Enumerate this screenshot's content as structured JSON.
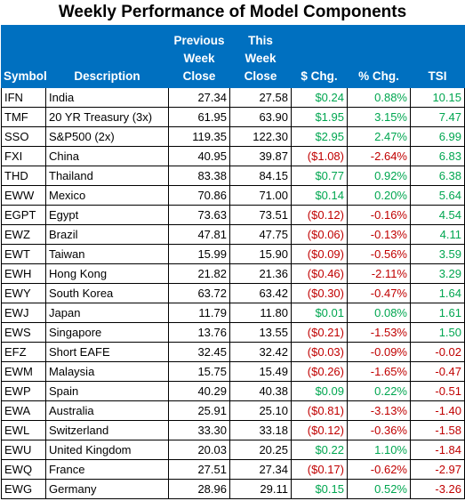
{
  "title": "Weekly Performance of Model Components",
  "headers": {
    "symbol": "Symbol",
    "description": "Description",
    "prev_close": [
      "Previous",
      "Week",
      "Close"
    ],
    "this_close": [
      "This",
      "Week",
      "Close"
    ],
    "chg": "$ Chg.",
    "pct": "% Chg.",
    "tsi": "TSI"
  },
  "colors": {
    "header_bg": "#0070c0",
    "positive": "#00a650",
    "negative": "#c00000"
  },
  "rows": [
    {
      "symbol": "IFN",
      "description": "India",
      "prev": "27.34",
      "cur": "27.58",
      "chg": "$0.24",
      "pct": "0.88%",
      "tsi": "10.15",
      "sign": "pos"
    },
    {
      "symbol": "TMF",
      "description": "20 YR Treasury (3x)",
      "prev": "61.95",
      "cur": "63.90",
      "chg": "$1.95",
      "pct": "3.15%",
      "tsi": "7.47",
      "sign": "pos"
    },
    {
      "symbol": "SSO",
      "description": "S&P500 (2x)",
      "prev": "119.35",
      "cur": "122.30",
      "chg": "$2.95",
      "pct": "2.47%",
      "tsi": "6.99",
      "sign": "pos"
    },
    {
      "symbol": "FXI",
      "description": "China",
      "prev": "40.95",
      "cur": "39.87",
      "chg": "($1.08)",
      "pct": "-2.64%",
      "tsi": "6.83",
      "sign": "neg"
    },
    {
      "symbol": "THD",
      "description": "Thailand",
      "prev": "83.38",
      "cur": "84.15",
      "chg": "$0.77",
      "pct": "0.92%",
      "tsi": "6.38",
      "sign": "pos"
    },
    {
      "symbol": "EWW",
      "description": "Mexico",
      "prev": "70.86",
      "cur": "71.00",
      "chg": "$0.14",
      "pct": "0.20%",
      "tsi": "5.64",
      "sign": "pos"
    },
    {
      "symbol": "EGPT",
      "description": "Egypt",
      "prev": "73.63",
      "cur": "73.51",
      "chg": "($0.12)",
      "pct": "-0.16%",
      "tsi": "4.54",
      "sign": "neg"
    },
    {
      "symbol": "EWZ",
      "description": "Brazil",
      "prev": "47.81",
      "cur": "47.75",
      "chg": "($0.06)",
      "pct": "-0.13%",
      "tsi": "4.11",
      "sign": "neg"
    },
    {
      "symbol": "EWT",
      "description": "Taiwan",
      "prev": "15.99",
      "cur": "15.90",
      "chg": "($0.09)",
      "pct": "-0.56%",
      "tsi": "3.59",
      "sign": "neg"
    },
    {
      "symbol": "EWH",
      "description": "Hong Kong",
      "prev": "21.82",
      "cur": "21.36",
      "chg": "($0.46)",
      "pct": "-2.11%",
      "tsi": "3.29",
      "sign": "neg"
    },
    {
      "symbol": "EWY",
      "description": "South Korea",
      "prev": "63.72",
      "cur": "63.42",
      "chg": "($0.30)",
      "pct": "-0.47%",
      "tsi": "1.64",
      "sign": "neg"
    },
    {
      "symbol": "EWJ",
      "description": "Japan",
      "prev": "11.79",
      "cur": "11.80",
      "chg": "$0.01",
      "pct": "0.08%",
      "tsi": "1.61",
      "sign": "pos"
    },
    {
      "symbol": "EWS",
      "description": "Singapore",
      "prev": "13.76",
      "cur": "13.55",
      "chg": "($0.21)",
      "pct": "-1.53%",
      "tsi": "1.50",
      "sign": "neg"
    },
    {
      "symbol": "EFZ",
      "description": "Short EAFE",
      "prev": "32.45",
      "cur": "32.42",
      "chg": "($0.03)",
      "pct": "-0.09%",
      "tsi": "-0.02",
      "sign": "neg"
    },
    {
      "symbol": "EWM",
      "description": "Malaysia",
      "prev": "15.75",
      "cur": "15.49",
      "chg": "($0.26)",
      "pct": "-1.65%",
      "tsi": "-0.47",
      "sign": "neg"
    },
    {
      "symbol": "EWP",
      "description": "Spain",
      "prev": "40.29",
      "cur": "40.38",
      "chg": "$0.09",
      "pct": "0.22%",
      "tsi": "-0.51",
      "sign": "pos"
    },
    {
      "symbol": "EWA",
      "description": "Australia",
      "prev": "25.91",
      "cur": "25.10",
      "chg": "($0.81)",
      "pct": "-3.13%",
      "tsi": "-1.40",
      "sign": "neg"
    },
    {
      "symbol": "EWL",
      "description": "Switzerland",
      "prev": "33.30",
      "cur": "33.18",
      "chg": "($0.12)",
      "pct": "-0.36%",
      "tsi": "-1.58",
      "sign": "neg"
    },
    {
      "symbol": "EWU",
      "description": "United Kingdom",
      "prev": "20.03",
      "cur": "20.25",
      "chg": "$0.22",
      "pct": "1.10%",
      "tsi": "-1.84",
      "sign": "pos"
    },
    {
      "symbol": "EWQ",
      "description": "France",
      "prev": "27.51",
      "cur": "27.34",
      "chg": "($0.17)",
      "pct": "-0.62%",
      "tsi": "-2.97",
      "sign": "neg"
    },
    {
      "symbol": "EWG",
      "description": "Germany",
      "prev": "28.96",
      "cur": "29.11",
      "chg": "$0.15",
      "pct": "0.52%",
      "tsi": "-3.26",
      "sign": "pos"
    }
  ]
}
